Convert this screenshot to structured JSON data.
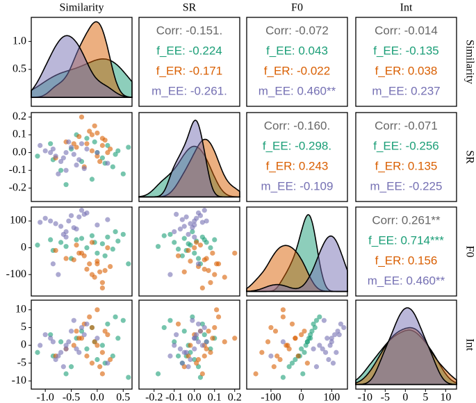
{
  "chart_data": {
    "type": "pairs",
    "variables": [
      {
        "name": "Similarity",
        "lim": [
          -1.27,
          0.67
        ],
        "ticks": [
          {
            "value": -1,
            "label": "-1.0"
          },
          -0.5,
          {
            "value": 0,
            "label": "0.0"
          },
          0.5
        ]
      },
      {
        "name": "SR",
        "lim": [
          -0.275,
          0.225
        ],
        "ticks": [
          -0.2,
          -0.1,
          {
            "value": 0,
            "label": "0.0"
          },
          0.1,
          0.2
        ]
      },
      {
        "name": "F0",
        "lim": [
          -180,
          152
        ],
        "ticks": [
          -100,
          0,
          100
        ]
      },
      {
        "name": "Int",
        "lim": [
          -12.3,
          12.7
        ],
        "ticks": [
          -10,
          -5,
          0,
          5,
          10
        ]
      }
    ],
    "density_ylim": [
      -0.16,
      1.43
    ],
    "density_yticks": [
      0.5,
      {
        "value": 1,
        "label": "1.0"
      }
    ],
    "corr_color": "#666666",
    "series": [
      {
        "color": "#1b9e77",
        "values": [
          [
            -1.15,
            -0.9,
            -0.7,
            -0.5,
            -0.3,
            -0.2,
            -0.1,
            0.0,
            0.1,
            0.2,
            0.3,
            0.4,
            0.5,
            0.6,
            -0.6,
            -0.4,
            0.15,
            -0.05,
            0.35,
            -0.85
          ],
          [
            -0.02,
            0.05,
            -0.1,
            0.02,
            -0.05,
            0.08,
            -0.15,
            0.0,
            -0.03,
            0.04,
            -0.08,
            0.01,
            -0.12,
            0.03,
            -0.18,
            0.1,
            -0.06,
            0.06,
            -0.01,
            -0.04
          ],
          [
            10,
            30,
            20,
            -40,
            35,
            0,
            45,
            -20,
            15,
            40,
            -5,
            25,
            50,
            -60,
            5,
            30,
            -30,
            20,
            60,
            -10
          ],
          [
            -2,
            3,
            1,
            -6,
            4,
            -1,
            5,
            -4,
            0,
            6,
            -3,
            2,
            7,
            -9,
            -8,
            2,
            -5,
            1,
            8,
            -3
          ]
        ]
      },
      {
        "color": "#d95f02",
        "values": [
          [
            -0.3,
            -0.2,
            -0.1,
            0.0,
            0.1,
            -0.4,
            -0.15,
            0.05,
            0.2,
            -0.6,
            -0.05,
            0.25,
            -0.25,
            0.1,
            -0.35,
            0.0,
            -0.8,
            0.15,
            -0.1,
            -0.45
          ],
          [
            0.2,
            0.05,
            0.1,
            -0.02,
            0.08,
            0.03,
            0.12,
            -0.05,
            0.0,
            0.06,
            0.15,
            0.02,
            -0.08,
            0.04,
            0.09,
            0.11,
            -0.03,
            0.07,
            0.01,
            0.05
          ],
          [
            -20,
            -80,
            -100,
            -50,
            -130,
            10,
            -60,
            -90,
            0,
            -40,
            -110,
            -70,
            -30,
            -150,
            -20,
            -60,
            -10,
            -85,
            20,
            -45
          ],
          [
            2,
            -3,
            5,
            0,
            -2,
            4,
            8,
            -6,
            3,
            -1,
            1,
            -4,
            6,
            -8,
            2,
            10,
            -3,
            4,
            -5,
            0
          ]
        ]
      },
      {
        "color": "#7570b3",
        "values": [
          [
            -0.9,
            -0.7,
            -0.5,
            -0.6,
            -0.3,
            -0.8,
            -1.0,
            -0.4,
            -0.2,
            -0.65,
            -0.55,
            -0.75,
            0.0,
            -0.35,
            -1.1,
            -0.45,
            0.2,
            -0.85,
            -0.25,
            -0.6
          ],
          [
            0.0,
            -0.05,
            0.03,
            -0.1,
            0.05,
            -0.02,
            0.01,
            -0.07,
            0.02,
            -0.03,
            0.06,
            -0.12,
            0.0,
            -0.04,
            0.04,
            -0.01,
            -0.06,
            0.02,
            -0.09,
            0.0
          ],
          [
            100,
            80,
            120,
            60,
            140,
            90,
            110,
            70,
            130,
            50,
            100,
            -100,
            85,
            115,
            95,
            75,
            105,
            -60,
            125,
            40
          ],
          [
            2,
            -2,
            4,
            0,
            5,
            -4,
            3,
            -1,
            6,
            -6,
            1,
            -3,
            2,
            -2,
            0,
            7,
            -5,
            1,
            3,
            -1
          ]
        ]
      }
    ],
    "correlations": [
      [
        "Corr: -0.151.",
        "f_EE: -0.224",
        "f_ER: -0.171",
        "m_EE: -0.261."
      ],
      [
        "Corr: -0.072",
        "f_EE: 0.043",
        "f_ER: -0.022",
        "m_EE: 0.460**"
      ],
      [
        "Corr: -0.014",
        "f_EE: -0.135",
        "f_ER: 0.038",
        "m_EE: 0.237"
      ],
      [
        "Corr: -0.160.",
        "f_EE: -0.298.",
        "f_ER: 0.243",
        "m_EE: -0.109"
      ],
      [
        "Corr: -0.071",
        "f_EE: -0.256",
        "f_ER: 0.135",
        "m_EE: -0.225"
      ],
      [
        "Corr: 0.261**",
        "f_EE: 0.714***",
        "f_ER: 0.156",
        "m_EE: 0.460**"
      ]
    ]
  }
}
